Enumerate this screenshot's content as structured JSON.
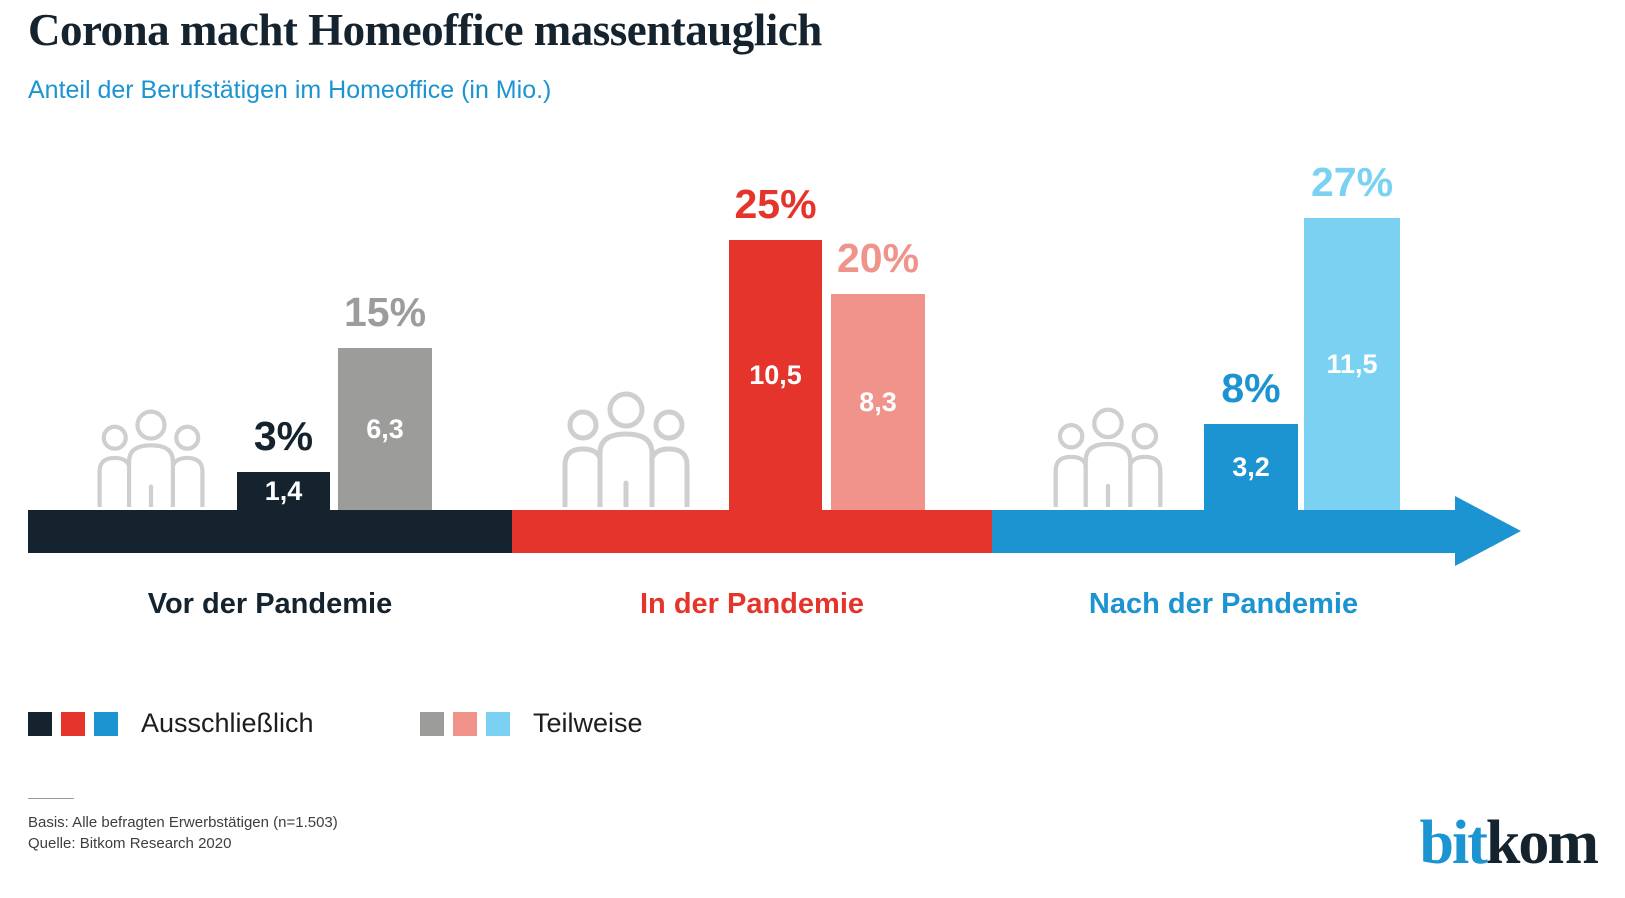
{
  "header": {
    "title": "Corona macht Homeoffice massentauglich",
    "subtitle": "Anteil der Berufstätigen im Homeoffice (in Mio.)"
  },
  "palette": {
    "dark": "#14232e",
    "red": "#e5342b",
    "pink": "#f0948b",
    "gray": "#9c9c9b",
    "blue": "#1b94d1",
    "light_blue": "#7ad1f2",
    "icon_gray": "#cfcfcf"
  },
  "chart_data": {
    "type": "bar",
    "title": "Corona macht Homeoffice massentauglich",
    "subtitle": "Anteil der Berufstätigen im Homeoffice (in Mio.)",
    "categories": [
      "Vor der Pandemie",
      "In der Pandemie",
      "Nach der Pandemie"
    ],
    "series": [
      {
        "name": "Ausschließlich",
        "percent": [
          3,
          25,
          8
        ],
        "values_mio": [
          1.4,
          10.5,
          3.2
        ]
      },
      {
        "name": "Teilweise",
        "percent": [
          15,
          20,
          27
        ],
        "values_mio": [
          6.3,
          8.3,
          11.5
        ]
      }
    ],
    "ylabel": "Anteil der Berufstätigen im Homeoffice (in Mio.)",
    "legend_position": "bottom",
    "grid": false,
    "groups": [
      {
        "label": "Vor der Pandemie",
        "color": "#14232e",
        "bars": [
          {
            "series": "Ausschließlich",
            "percent": 3,
            "percent_label": "3%",
            "value": 1.4,
            "value_label": "1,4",
            "color": "#14232e"
          },
          {
            "series": "Teilweise",
            "percent": 15,
            "percent_label": "15%",
            "value": 6.3,
            "value_label": "6,3",
            "color": "#9c9c9b"
          }
        ]
      },
      {
        "label": "In der Pandemie",
        "color": "#e5342b",
        "bars": [
          {
            "series": "Ausschließlich",
            "percent": 25,
            "percent_label": "25%",
            "value": 10.5,
            "value_label": "10,5",
            "color": "#e5342b"
          },
          {
            "series": "Teilweise",
            "percent": 20,
            "percent_label": "20%",
            "value": 8.3,
            "value_label": "8,3",
            "color": "#f0948b"
          }
        ]
      },
      {
        "label": "Nach der Pandemie",
        "color": "#1b94d1",
        "bars": [
          {
            "series": "Ausschließlich",
            "percent": 8,
            "percent_label": "8%",
            "value": 3.2,
            "value_label": "3,2",
            "color": "#1b94d1"
          },
          {
            "series": "Teilweise",
            "percent": 27,
            "percent_label": "27%",
            "value": 11.5,
            "value_label": "11,5",
            "color": "#7ad1f2"
          }
        ]
      }
    ],
    "legend": [
      {
        "label": "Ausschließlich",
        "colors": [
          "#14232e",
          "#e5342b",
          "#1b94d1"
        ]
      },
      {
        "label": "Teilweise",
        "colors": [
          "#9c9c9b",
          "#f0948b",
          "#7ad1f2"
        ]
      }
    ]
  },
  "footer": {
    "basis": "Basis: Alle befragten Erwerbstätigen (n=1.503)",
    "source": "Quelle: Bitkom Research 2020",
    "logo_bit": "bit",
    "logo_kom": "kom"
  }
}
